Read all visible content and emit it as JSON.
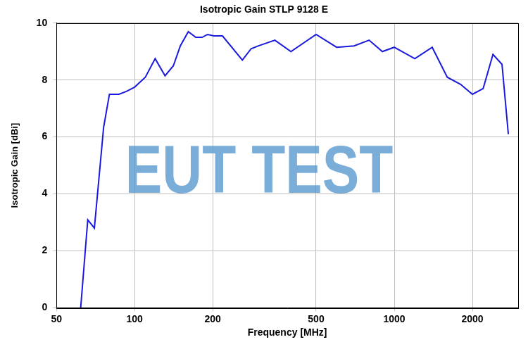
{
  "chart_data": {
    "type": "line",
    "title": "Isotropic Gain STLP 9128 E",
    "xlabel": "Frequency [MHz]",
    "ylabel": "Isotropic Gain [dBi]",
    "watermark": "EUT TEST",
    "x": [
      62,
      66,
      70,
      76,
      80,
      87,
      93,
      100,
      110,
      120,
      131,
      141,
      150,
      161,
      172,
      182,
      191,
      202,
      218,
      260,
      281,
      300,
      347,
      400,
      500,
      600,
      700,
      800,
      900,
      1000,
      1200,
      1400,
      1600,
      1800,
      2000,
      2200,
      2400,
      2600,
      2750
    ],
    "values": [
      0,
      3.09,
      2.8,
      6.35,
      7.5,
      7.5,
      7.6,
      7.75,
      8.1,
      8.75,
      8.15,
      8.5,
      9.2,
      9.7,
      9.5,
      9.5,
      9.6,
      9.55,
      9.55,
      8.7,
      9.1,
      9.2,
      9.4,
      9.0,
      9.6,
      9.15,
      9.2,
      9.4,
      9.0,
      9.15,
      8.75,
      9.15,
      8.1,
      7.85,
      7.5,
      7.7,
      8.9,
      8.55,
      6.1
    ],
    "color": "#1a1adc",
    "log": "x",
    "xlim": [
      50,
      3000
    ],
    "xticks": [
      50,
      100,
      200,
      500,
      1000,
      2000
    ],
    "ylim": [
      0,
      10
    ],
    "yticks": [
      0,
      2,
      4,
      6,
      8,
      10
    ],
    "grid": true
  }
}
